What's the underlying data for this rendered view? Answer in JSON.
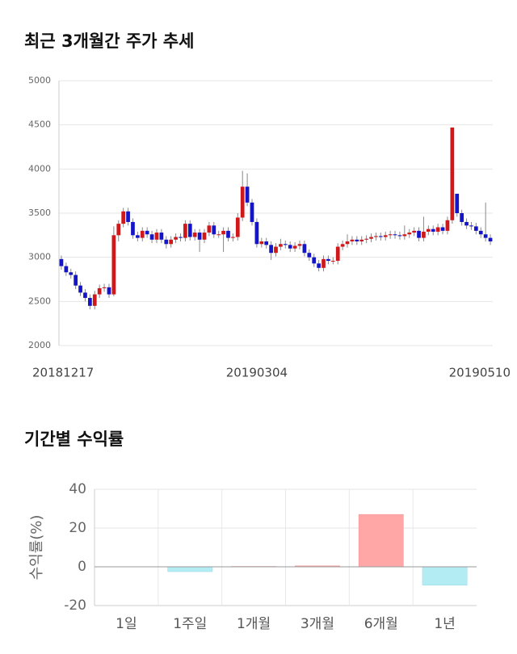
{
  "chart_data": [
    {
      "type": "candlestick",
      "title": "최근 3개월간 주가 추세",
      "categories": [
        "20181217",
        null,
        null,
        null,
        null,
        null,
        null,
        null,
        null,
        null,
        null,
        null,
        null,
        null,
        null,
        null,
        null,
        null,
        null,
        null,
        null,
        null,
        null,
        null,
        null,
        null,
        null,
        null,
        null,
        null,
        null,
        null,
        null,
        null,
        null,
        null,
        null,
        null,
        null,
        null,
        null,
        "20190304",
        null,
        null,
        null,
        null,
        null,
        null,
        null,
        null,
        null,
        null,
        null,
        null,
        null,
        null,
        null,
        null,
        null,
        null,
        null,
        null,
        null,
        null,
        null,
        null,
        null,
        null,
        null,
        null,
        null,
        null,
        null,
        null,
        null,
        null,
        null,
        null,
        null,
        null,
        null,
        null,
        null,
        null,
        null,
        null,
        null,
        null,
        null,
        null,
        "20190510"
      ],
      "open": [
        2980,
        2900,
        2830,
        2800,
        2680,
        2600,
        2540,
        2450,
        2580,
        2650,
        2660,
        2580,
        3250,
        3380,
        3520,
        3400,
        3250,
        3220,
        3300,
        3260,
        3200,
        3280,
        3200,
        3150,
        3200,
        3230,
        3220,
        3380,
        3230,
        3280,
        3200,
        3280,
        3360,
        3260,
        3260,
        3300,
        3220,
        3230,
        3450,
        3800,
        3620,
        3400,
        3150,
        3180,
        3140,
        3050,
        3120,
        3150,
        3140,
        3100,
        3130,
        3150,
        3050,
        3000,
        2930,
        2880,
        2980,
        2960,
        2960,
        3120,
        3150,
        3180,
        3200,
        3180,
        3200,
        3210,
        3230,
        3240,
        3230,
        3250,
        3260,
        3250,
        3240,
        3260,
        3280,
        3300,
        3220,
        3290,
        3320,
        3290,
        3340,
        3300,
        3420,
        3720,
        3500,
        3400,
        3360,
        3350,
        3300,
        3260,
        3220
      ],
      "high": [
        3020,
        2940,
        2870,
        2840,
        2720,
        2640,
        2580,
        2620,
        2690,
        2700,
        2700,
        3350,
        3420,
        3560,
        3560,
        3440,
        3290,
        3340,
        3340,
        3300,
        3320,
        3320,
        3240,
        3240,
        3270,
        3270,
        3420,
        3420,
        3320,
        3320,
        3320,
        3400,
        3400,
        3300,
        3340,
        3340,
        3270,
        3500,
        3980,
        3950,
        3660,
        3440,
        3220,
        3220,
        3180,
        3160,
        3210,
        3190,
        3180,
        3170,
        3190,
        3190,
        3090,
        3040,
        2970,
        3020,
        3020,
        3000,
        3160,
        3190,
        3260,
        3240,
        3240,
        3240,
        3250,
        3270,
        3280,
        3280,
        3290,
        3300,
        3300,
        3290,
        3360,
        3320,
        3340,
        3340,
        3460,
        3360,
        3360,
        3380,
        3380,
        3460,
        4470,
        3720,
        3540,
        3440,
        3400,
        3390,
        3340,
        3620,
        3260
      ],
      "low": [
        2860,
        2790,
        2760,
        2640,
        2560,
        2500,
        2410,
        2410,
        2540,
        2610,
        2540,
        2560,
        3180,
        3340,
        3360,
        3210,
        3180,
        3180,
        3220,
        3160,
        3160,
        3160,
        3100,
        3110,
        3160,
        3180,
        3180,
        3190,
        3190,
        3060,
        3160,
        3240,
        3220,
        3220,
        3060,
        3180,
        3180,
        3190,
        3410,
        3580,
        3360,
        3110,
        3110,
        3100,
        2970,
        3010,
        3080,
        3100,
        3060,
        3060,
        3090,
        3010,
        2960,
        2890,
        2840,
        2840,
        2920,
        2920,
        2920,
        3080,
        3110,
        3140,
        3140,
        3140,
        3160,
        3170,
        3190,
        3190,
        3190,
        3210,
        3210,
        3200,
        3200,
        3220,
        3240,
        3180,
        3180,
        3250,
        3250,
        3250,
        3260,
        3260,
        3380,
        3460,
        3360,
        3320,
        3310,
        3260,
        3220,
        3180,
        3140
      ],
      "close": [
        2900,
        2830,
        2800,
        2680,
        2600,
        2540,
        2450,
        2580,
        2650,
        2660,
        2580,
        3250,
        3380,
        3520,
        3400,
        3250,
        3220,
        3300,
        3260,
        3200,
        3280,
        3200,
        3150,
        3200,
        3230,
        3220,
        3380,
        3230,
        3280,
        3200,
        3280,
        3360,
        3260,
        3260,
        3300,
        3220,
        3230,
        3450,
        3800,
        3620,
        3400,
        3150,
        3180,
        3140,
        3050,
        3120,
        3150,
        3140,
        3100,
        3130,
        3150,
        3050,
        3000,
        2930,
        2880,
        2980,
        2960,
        2960,
        3120,
        3150,
        3180,
        3200,
        3180,
        3200,
        3210,
        3230,
        3240,
        3230,
        3250,
        3260,
        3250,
        3240,
        3260,
        3280,
        3300,
        3220,
        3290,
        3320,
        3290,
        3340,
        3300,
        3420,
        4470,
        3500,
        3400,
        3360,
        3350,
        3300,
        3260,
        3220,
        3180
      ],
      "up_color": "#d0181b",
      "down_color": "#1414c8",
      "ylim": [
        2000,
        5000
      ],
      "yticks": [
        2000,
        2500,
        3000,
        3500,
        4000,
        4500,
        5000
      ],
      "grid": true
    },
    {
      "type": "bar",
      "title": "기간별 수익률",
      "y_label": "수익률(%)",
      "categories": [
        "1일",
        "1주일",
        "1개월",
        "3개월",
        "6개월",
        "1년"
      ],
      "values": [
        0,
        -2.5,
        0.2,
        0.5,
        27,
        -9.5
      ],
      "positive_color": "#ffa7a7",
      "negative_color": "#b3ecf3",
      "ylim": [
        -20,
        40
      ],
      "yticks": [
        -20,
        0,
        20,
        40
      ],
      "grid": true
    }
  ]
}
